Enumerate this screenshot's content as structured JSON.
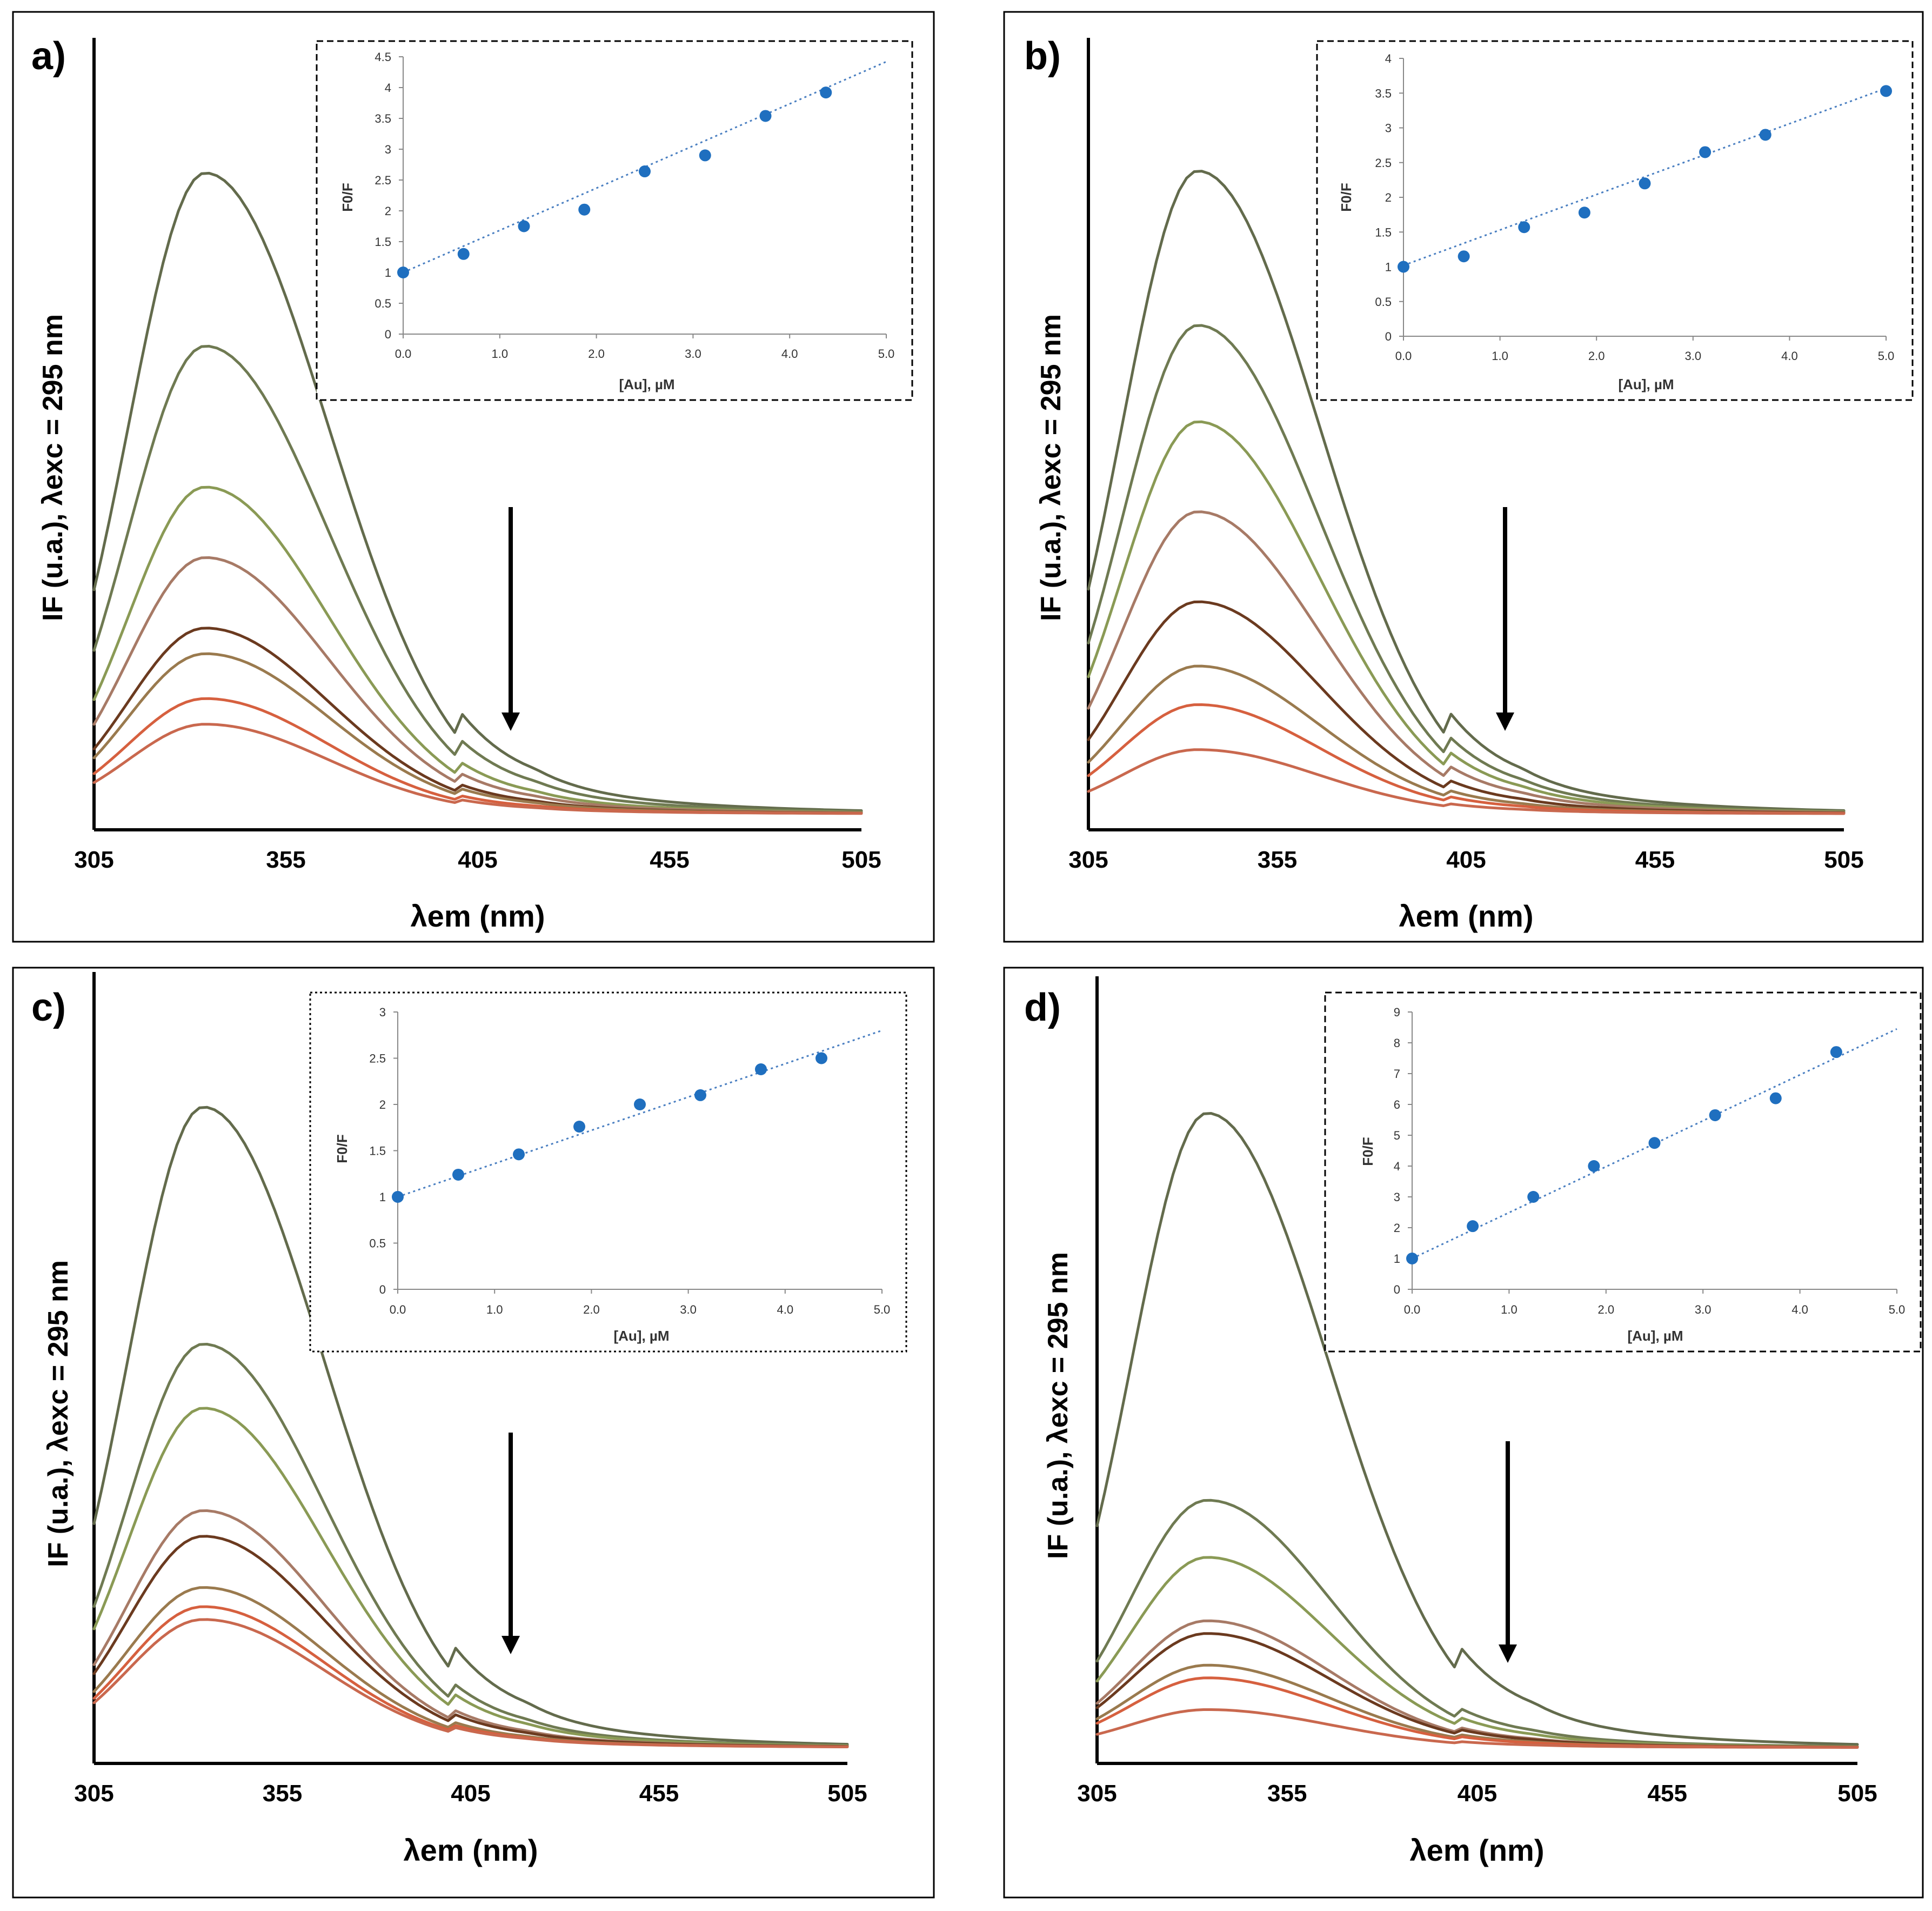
{
  "colors": {
    "spectra": [
      "#636b4c",
      "#6f7a52",
      "#8a9a55",
      "#a77a66",
      "#6b3a1f",
      "#9a7a4e",
      "#d6603f",
      "#c9684e"
    ],
    "points": "#1f6fbf",
    "fit": "#4a7fc1"
  },
  "chart_data": [
    {
      "panel_label": "a)",
      "type": "line",
      "xlabel": "λem (nm)",
      "ylabel": "IF (u.a.), λexc = 295 nm",
      "x_ticks": [
        "305",
        "355",
        "405",
        "455",
        "505"
      ],
      "xlim": [
        305,
        505
      ],
      "series_peaks_relative": [
        1.0,
        0.73,
        0.51,
        0.4,
        0.29,
        0.25,
        0.18,
        0.14
      ],
      "peak_x": 334,
      "arrow_direction": "down",
      "inset": {
        "type": "scatter",
        "xlabel": "[Au], µM",
        "ylabel": "F0/F",
        "x_ticks": [
          "0.0",
          "1.0",
          "2.0",
          "3.0",
          "4.0",
          "5.0"
        ],
        "y_ticks": [
          "0",
          "0.5",
          "1",
          "1.5",
          "2",
          "2.5",
          "3",
          "3.5",
          "4",
          "4.5"
        ],
        "xlim": [
          0,
          5
        ],
        "ylim": [
          0,
          4.5
        ],
        "x": [
          0.0,
          0.625,
          1.25,
          1.875,
          2.5,
          3.125,
          3.75,
          4.375
        ],
        "y": [
          1.0,
          1.3,
          1.75,
          2.02,
          2.64,
          2.9,
          3.54,
          3.92
        ],
        "fit": {
          "slope": 0.684,
          "intercept": 1.0
        }
      }
    },
    {
      "panel_label": "b)",
      "type": "line",
      "xlabel": "λem (nm)",
      "ylabel": "IF (u.a.), λexc = 295 nm",
      "x_ticks": [
        "305",
        "355",
        "405",
        "455",
        "505"
      ],
      "xlim": [
        305,
        505
      ],
      "series_peaks_relative": [
        1.0,
        0.76,
        0.61,
        0.47,
        0.33,
        0.23,
        0.17,
        0.1
      ],
      "peak_x": 334,
      "arrow_direction": "down",
      "inset": {
        "type": "scatter",
        "xlabel": "[Au], µM",
        "ylabel": "F0/F",
        "x_ticks": [
          "0.0",
          "1.0",
          "2.0",
          "3.0",
          "4.0",
          "5.0"
        ],
        "y_ticks": [
          "0",
          "0.5",
          "1",
          "1.5",
          "2",
          "2.5",
          "3",
          "3.5",
          "4"
        ],
        "xlim": [
          0,
          5
        ],
        "ylim": [
          0,
          4
        ],
        "x": [
          0.0,
          0.625,
          1.25,
          1.875,
          2.5,
          3.125,
          3.75,
          5.0
        ],
        "y": [
          1.0,
          1.15,
          1.57,
          1.78,
          2.2,
          2.65,
          2.9,
          3.53
        ],
        "fit": {
          "slope": 0.51,
          "intercept": 1.02
        }
      }
    },
    {
      "panel_label": "c)",
      "type": "line",
      "xlabel": "λem (nm)",
      "ylabel": "IF (u.a.), λexc = 295 nm",
      "x_ticks": [
        "305",
        "355",
        "405",
        "455",
        "505"
      ],
      "xlim": [
        305,
        505
      ],
      "series_peaks_relative": [
        1.0,
        0.63,
        0.53,
        0.37,
        0.33,
        0.25,
        0.22,
        0.2
      ],
      "peak_x": 334,
      "arrow_direction": "down",
      "inset": {
        "type": "scatter",
        "xlabel": "[Au], µM",
        "ylabel": "F0/F",
        "x_ticks": [
          "0.0",
          "1.0",
          "2.0",
          "3.0",
          "4.0",
          "5.0"
        ],
        "y_ticks": [
          "0",
          "0.5",
          "1",
          "1.5",
          "2",
          "2.5",
          "3"
        ],
        "xlim": [
          0,
          5
        ],
        "ylim": [
          0,
          3
        ],
        "x": [
          0.0,
          0.625,
          1.25,
          1.875,
          2.5,
          3.125,
          3.75,
          4.375
        ],
        "y": [
          1.0,
          1.24,
          1.46,
          1.76,
          2.0,
          2.1,
          2.38,
          2.5
        ],
        "fit": {
          "slope": 0.36,
          "intercept": 1.0
        }
      }
    },
    {
      "panel_label": "d)",
      "type": "line",
      "xlabel": "λem (nm)",
      "ylabel": "IF (u.a.), λexc = 295 nm",
      "x_ticks": [
        "305",
        "355",
        "405",
        "455",
        "505"
      ],
      "xlim": [
        305,
        505
      ],
      "series_peaks_relative": [
        1.0,
        0.39,
        0.3,
        0.2,
        0.18,
        0.13,
        0.11,
        0.06
      ],
      "peak_x": 334,
      "arrow_direction": "down",
      "inset": {
        "type": "scatter",
        "xlabel": "[Au], µM",
        "ylabel": "F0/F",
        "x_ticks": [
          "0.0",
          "1.0",
          "2.0",
          "3.0",
          "4.0",
          "5.0"
        ],
        "y_ticks": [
          "0",
          "1",
          "2",
          "3",
          "4",
          "5",
          "6",
          "7",
          "8",
          "9"
        ],
        "xlim": [
          0,
          5
        ],
        "ylim": [
          0,
          9
        ],
        "x": [
          0.0,
          0.625,
          1.25,
          1.875,
          2.5,
          3.125,
          3.75,
          4.375
        ],
        "y": [
          1.0,
          2.05,
          3.0,
          4.0,
          4.75,
          5.65,
          6.2,
          7.7
        ],
        "fit": {
          "slope": 1.49,
          "intercept": 1.0
        }
      }
    }
  ]
}
